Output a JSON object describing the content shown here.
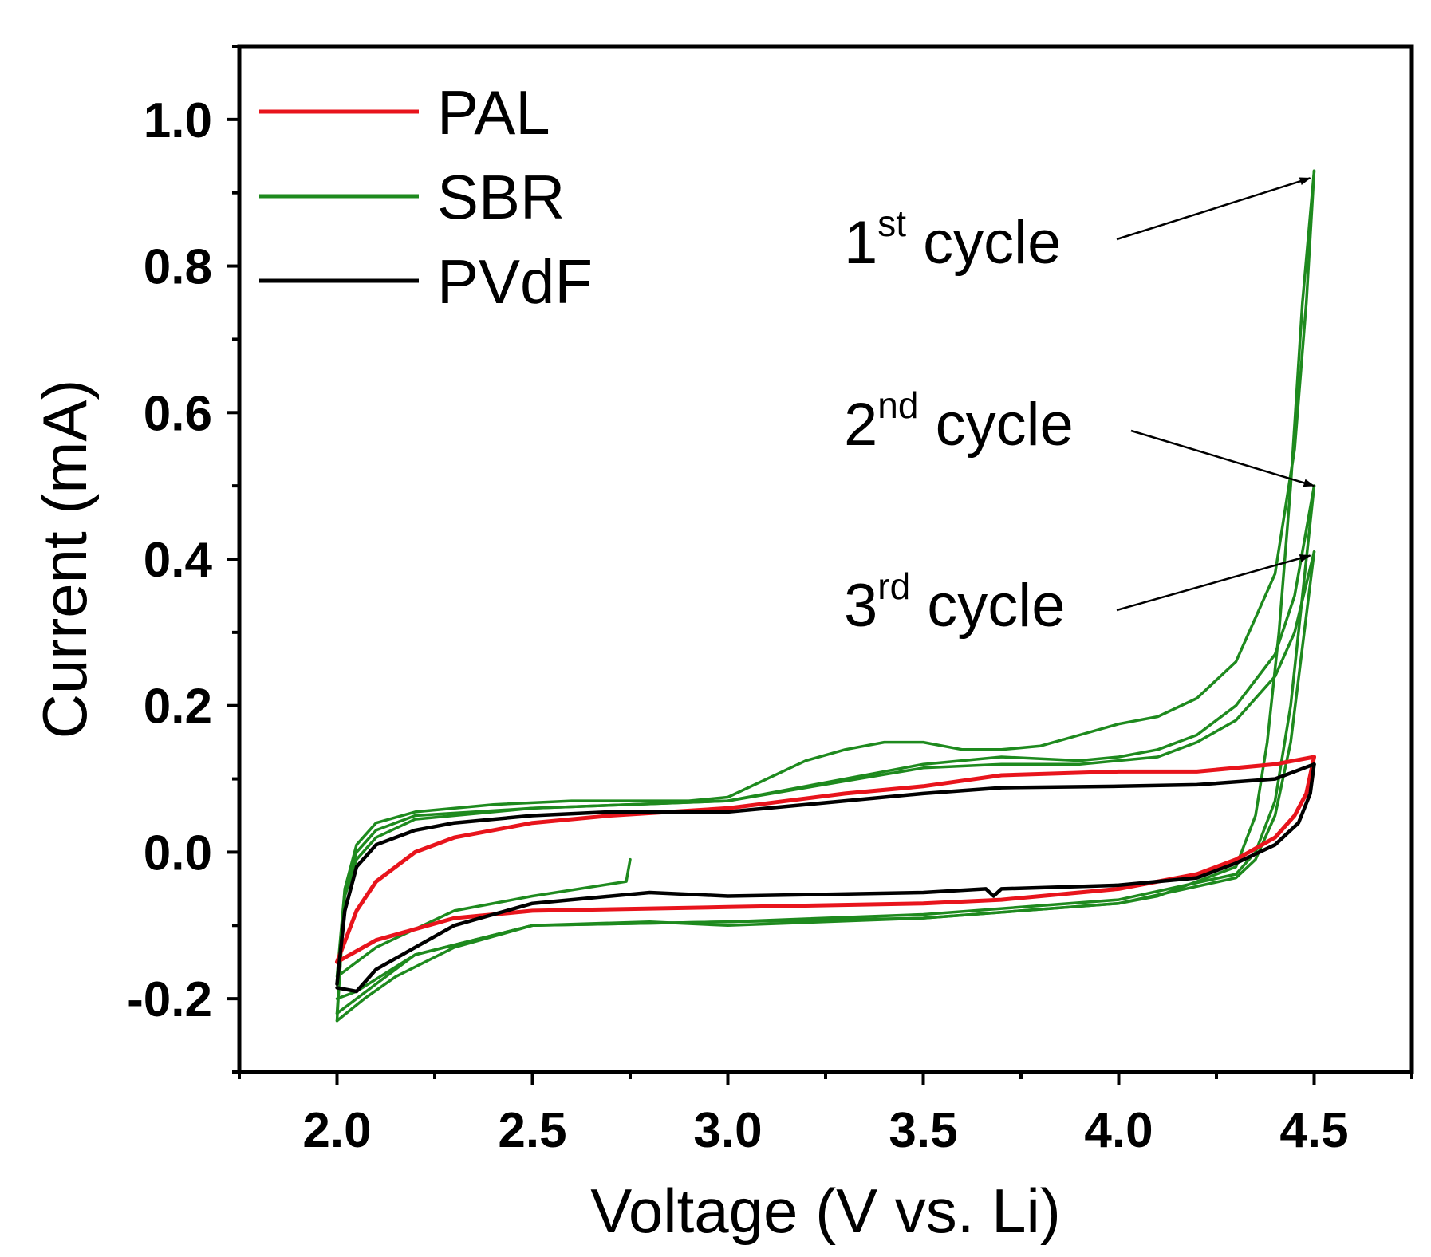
{
  "chart_data": {
    "type": "line",
    "title": "",
    "xlabel": "Voltage (V vs. Li)",
    "ylabel": "Current (mA)",
    "xlim": [
      1.75,
      4.75
    ],
    "ylim": [
      -0.3,
      1.1
    ],
    "xticks": [
      "2.0",
      "2.5",
      "3.0",
      "3.5",
      "4.0",
      "4.5"
    ],
    "xtick_values": [
      2.0,
      2.5,
      3.0,
      3.5,
      4.0,
      4.5
    ],
    "yticks": [
      "-0.2",
      "0.0",
      "0.2",
      "0.4",
      "0.6",
      "0.8",
      "1.0"
    ],
    "ytick_values": [
      -0.2,
      0.0,
      0.2,
      0.4,
      0.6,
      0.8,
      1.0
    ],
    "grid": false,
    "legend_position": "top-left",
    "colors": {
      "PAL": "#e8141c",
      "SBR": "#1e8a1e",
      "PVdF": "#000000"
    },
    "series": [
      {
        "name": "PAL",
        "color": "#e8141c",
        "anodic": [
          [
            2.0,
            -0.15
          ],
          [
            2.05,
            -0.08
          ],
          [
            2.1,
            -0.04
          ],
          [
            2.2,
            0.0
          ],
          [
            2.3,
            0.02
          ],
          [
            2.5,
            0.04
          ],
          [
            2.7,
            0.05
          ],
          [
            3.0,
            0.06
          ],
          [
            3.3,
            0.08
          ],
          [
            3.5,
            0.09
          ],
          [
            3.7,
            0.105
          ],
          [
            4.0,
            0.11
          ],
          [
            4.2,
            0.11
          ],
          [
            4.4,
            0.12
          ],
          [
            4.5,
            0.13
          ]
        ],
        "cathodic": [
          [
            4.5,
            0.13
          ],
          [
            4.48,
            0.08
          ],
          [
            4.45,
            0.05
          ],
          [
            4.4,
            0.02
          ],
          [
            4.3,
            -0.01
          ],
          [
            4.2,
            -0.03
          ],
          [
            4.0,
            -0.05
          ],
          [
            3.7,
            -0.065
          ],
          [
            3.5,
            -0.07
          ],
          [
            3.0,
            -0.075
          ],
          [
            2.5,
            -0.08
          ],
          [
            2.3,
            -0.09
          ],
          [
            2.1,
            -0.12
          ],
          [
            2.0,
            -0.15
          ]
        ]
      },
      {
        "name": "SBR",
        "color": "#1e8a1e",
        "cycles": [
          {
            "label": "1st cycle",
            "anodic": [
              [
                2.75,
                -0.01
              ],
              [
                2.74,
                -0.04
              ],
              [
                2.5,
                -0.06
              ],
              [
                2.3,
                -0.08
              ],
              [
                2.1,
                -0.13
              ],
              [
                2.0,
                -0.17
              ],
              [
                2.02,
                -0.05
              ],
              [
                2.05,
                0.01
              ],
              [
                2.1,
                0.04
              ],
              [
                2.2,
                0.055
              ],
              [
                2.4,
                0.065
              ],
              [
                2.6,
                0.07
              ],
              [
                2.9,
                0.07
              ],
              [
                3.0,
                0.075
              ],
              [
                3.1,
                0.1
              ],
              [
                3.2,
                0.125
              ],
              [
                3.3,
                0.14
              ],
              [
                3.4,
                0.15
              ],
              [
                3.5,
                0.15
              ],
              [
                3.6,
                0.14
              ],
              [
                3.7,
                0.14
              ],
              [
                3.8,
                0.145
              ],
              [
                3.9,
                0.16
              ],
              [
                4.0,
                0.175
              ],
              [
                4.1,
                0.185
              ],
              [
                4.2,
                0.21
              ],
              [
                4.3,
                0.26
              ],
              [
                4.4,
                0.38
              ],
              [
                4.45,
                0.55
              ],
              [
                4.48,
                0.75
              ],
              [
                4.5,
                0.93
              ]
            ],
            "cathodic": [
              [
                4.5,
                0.93
              ],
              [
                4.47,
                0.75
              ],
              [
                4.44,
                0.5
              ],
              [
                4.41,
                0.3
              ],
              [
                4.38,
                0.15
              ],
              [
                4.35,
                0.05
              ],
              [
                4.3,
                -0.02
              ],
              [
                4.1,
                -0.06
              ],
              [
                4.0,
                -0.07
              ],
              [
                3.5,
                -0.09
              ],
              [
                3.0,
                -0.1
              ],
              [
                2.8,
                -0.095
              ],
              [
                2.5,
                -0.1
              ],
              [
                2.3,
                -0.13
              ],
              [
                2.15,
                -0.17
              ],
              [
                2.07,
                -0.2
              ],
              [
                2.0,
                -0.23
              ]
            ]
          },
          {
            "label": "2nd cycle",
            "anodic": [
              [
                2.0,
                -0.23
              ],
              [
                2.02,
                -0.05
              ],
              [
                2.05,
                0.0
              ],
              [
                2.1,
                0.03
              ],
              [
                2.2,
                0.05
              ],
              [
                2.5,
                0.06
              ],
              [
                3.0,
                0.07
              ],
              [
                3.5,
                0.12
              ],
              [
                3.7,
                0.13
              ],
              [
                3.9,
                0.125
              ],
              [
                4.0,
                0.13
              ],
              [
                4.1,
                0.14
              ],
              [
                4.2,
                0.16
              ],
              [
                4.3,
                0.2
              ],
              [
                4.4,
                0.27
              ],
              [
                4.45,
                0.35
              ],
              [
                4.5,
                0.5
              ]
            ],
            "cathodic": [
              [
                4.5,
                0.5
              ],
              [
                4.47,
                0.35
              ],
              [
                4.44,
                0.2
              ],
              [
                4.4,
                0.07
              ],
              [
                4.35,
                0.0
              ],
              [
                4.3,
                -0.03
              ],
              [
                4.0,
                -0.065
              ],
              [
                3.5,
                -0.085
              ],
              [
                3.0,
                -0.095
              ],
              [
                2.5,
                -0.1
              ],
              [
                2.2,
                -0.14
              ],
              [
                2.05,
                -0.2
              ],
              [
                2.0,
                -0.22
              ]
            ]
          },
          {
            "label": "3rd cycle",
            "anodic": [
              [
                2.0,
                -0.22
              ],
              [
                2.02,
                -0.06
              ],
              [
                2.05,
                -0.01
              ],
              [
                2.1,
                0.02
              ],
              [
                2.2,
                0.045
              ],
              [
                2.5,
                0.06
              ],
              [
                3.0,
                0.07
              ],
              [
                3.5,
                0.115
              ],
              [
                3.7,
                0.12
              ],
              [
                3.9,
                0.12
              ],
              [
                4.0,
                0.125
              ],
              [
                4.1,
                0.13
              ],
              [
                4.2,
                0.15
              ],
              [
                4.3,
                0.18
              ],
              [
                4.4,
                0.24
              ],
              [
                4.45,
                0.3
              ],
              [
                4.5,
                0.41
              ]
            ],
            "cathodic": [
              [
                4.5,
                0.41
              ],
              [
                4.47,
                0.28
              ],
              [
                4.44,
                0.15
              ],
              [
                4.4,
                0.05
              ],
              [
                4.35,
                -0.01
              ],
              [
                4.3,
                -0.035
              ],
              [
                4.0,
                -0.07
              ],
              [
                3.5,
                -0.09
              ],
              [
                3.0,
                -0.095
              ],
              [
                2.5,
                -0.1
              ],
              [
                2.2,
                -0.14
              ],
              [
                2.05,
                -0.19
              ],
              [
                2.0,
                -0.2
              ]
            ]
          }
        ]
      },
      {
        "name": "PVdF",
        "color": "#000000",
        "anodic": [
          [
            2.0,
            -0.18
          ],
          [
            2.02,
            -0.08
          ],
          [
            2.05,
            -0.02
          ],
          [
            2.1,
            0.01
          ],
          [
            2.2,
            0.03
          ],
          [
            2.3,
            0.04
          ],
          [
            2.5,
            0.05
          ],
          [
            2.7,
            0.055
          ],
          [
            3.0,
            0.055
          ],
          [
            3.3,
            0.07
          ],
          [
            3.5,
            0.08
          ],
          [
            3.7,
            0.088
          ],
          [
            4.0,
            0.09
          ],
          [
            4.2,
            0.092
          ],
          [
            4.4,
            0.1
          ],
          [
            4.5,
            0.12
          ]
        ],
        "cathodic": [
          [
            4.5,
            0.12
          ],
          [
            4.49,
            0.08
          ],
          [
            4.46,
            0.04
          ],
          [
            4.4,
            0.01
          ],
          [
            4.3,
            -0.015
          ],
          [
            4.2,
            -0.035
          ],
          [
            4.0,
            -0.045
          ],
          [
            3.7,
            -0.05
          ],
          [
            3.68,
            -0.06
          ],
          [
            3.66,
            -0.05
          ],
          [
            3.5,
            -0.055
          ],
          [
            3.0,
            -0.06
          ],
          [
            2.8,
            -0.055
          ],
          [
            2.5,
            -0.07
          ],
          [
            2.3,
            -0.1
          ],
          [
            2.2,
            -0.13
          ],
          [
            2.1,
            -0.16
          ],
          [
            2.05,
            -0.19
          ],
          [
            2.0,
            -0.185
          ]
        ]
      }
    ],
    "annotations": [
      {
        "number": "1",
        "suffix": "st",
        "word": "cycle",
        "target": [
          4.49,
          0.92
        ]
      },
      {
        "number": "2",
        "suffix": "nd",
        "word": "cycle",
        "target": [
          4.5,
          0.5
        ]
      },
      {
        "number": "3",
        "suffix": "rd",
        "word": "cycle",
        "target": [
          4.49,
          0.405
        ]
      }
    ]
  }
}
